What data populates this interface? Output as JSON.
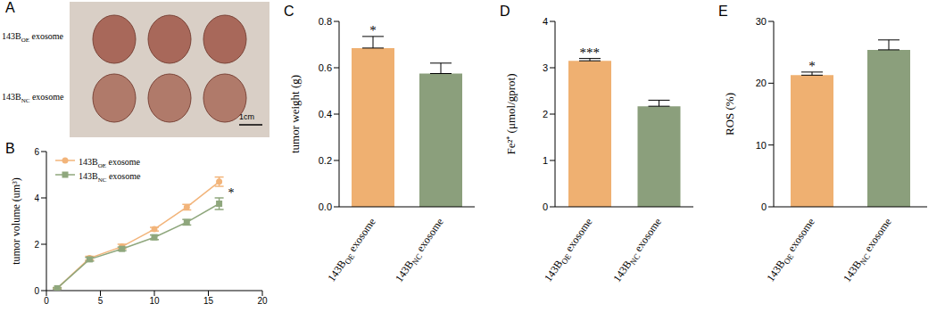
{
  "image_panel": {
    "panel_label": "A",
    "row_labels": [
      "143BOE exosome",
      "143BNC exosome"
    ],
    "scale_bar": "1cm"
  },
  "chart_data": [
    {
      "panel_label": "B",
      "type": "line",
      "x": [
        1,
        4,
        7,
        10,
        13,
        16
      ],
      "series": [
        {
          "name": "143BOE exosome",
          "color": "#F2B47A",
          "marker": "circle",
          "values": [
            0.1,
            1.4,
            1.9,
            2.65,
            3.6,
            4.7
          ],
          "errors": [
            0.03,
            0.08,
            0.1,
            0.08,
            0.12,
            0.2
          ]
        },
        {
          "name": "143BNC exosome",
          "color": "#8FA77D",
          "marker": "square",
          "values": [
            0.1,
            1.35,
            1.8,
            2.3,
            2.95,
            3.75
          ],
          "errors": [
            0.03,
            0.08,
            0.08,
            0.1,
            0.12,
            0.25
          ]
        }
      ],
      "xlim": [
        0,
        20
      ],
      "xticks": [
        0,
        5,
        10,
        15,
        20
      ],
      "ylim": [
        0,
        6
      ],
      "yticks": [
        0,
        2,
        4,
        6
      ],
      "ylabel": "tumor volume (um³)",
      "legend": "upper left",
      "annotations": [
        {
          "text": "*",
          "x": 16
        }
      ]
    },
    {
      "panel_label": "C",
      "type": "bar",
      "categories": [
        "143BOE exosome",
        "143BNC exosome"
      ],
      "values": [
        0.685,
        0.575
      ],
      "errors": [
        0.05,
        0.045
      ],
      "colors": [
        "#EFB071",
        "#8B9F7C"
      ],
      "ylim": [
        0,
        0.8
      ],
      "yticks": [
        {
          "value": 0,
          "label": "0.0"
        },
        0.2,
        0.4,
        0.6,
        0.8
      ],
      "ylabel": "tumor weight (g)",
      "annotations": [
        {
          "text": "*",
          "category": "143BOE exosome"
        }
      ]
    },
    {
      "panel_label": "D",
      "type": "bar",
      "categories": [
        "143BOE exosome",
        "143BNC exosome"
      ],
      "values": [
        3.15,
        2.17
      ],
      "errors": [
        0.05,
        0.13
      ],
      "colors": [
        "#EFB071",
        "#8B9F7C"
      ],
      "ylim": [
        0,
        4
      ],
      "yticks": [
        0,
        1,
        2,
        3,
        4
      ],
      "ylabel": "Fe²⁺ (μmol/gprot)",
      "annotations": [
        {
          "text": "***",
          "category": "143BOE exosome"
        }
      ]
    },
    {
      "panel_label": "E",
      "type": "bar",
      "categories": [
        "143BOE exosome",
        "143BNC exosome"
      ],
      "values": [
        21.3,
        25.4
      ],
      "errors": [
        0.5,
        1.6
      ],
      "colors": [
        "#EFB071",
        "#8B9F7C"
      ],
      "ylim": [
        0,
        30
      ],
      "yticks": [
        0,
        10,
        20,
        30
      ],
      "ylabel": "ROS (%)",
      "annotations": [
        {
          "text": "*",
          "category": "143BOE exosome"
        }
      ]
    }
  ]
}
